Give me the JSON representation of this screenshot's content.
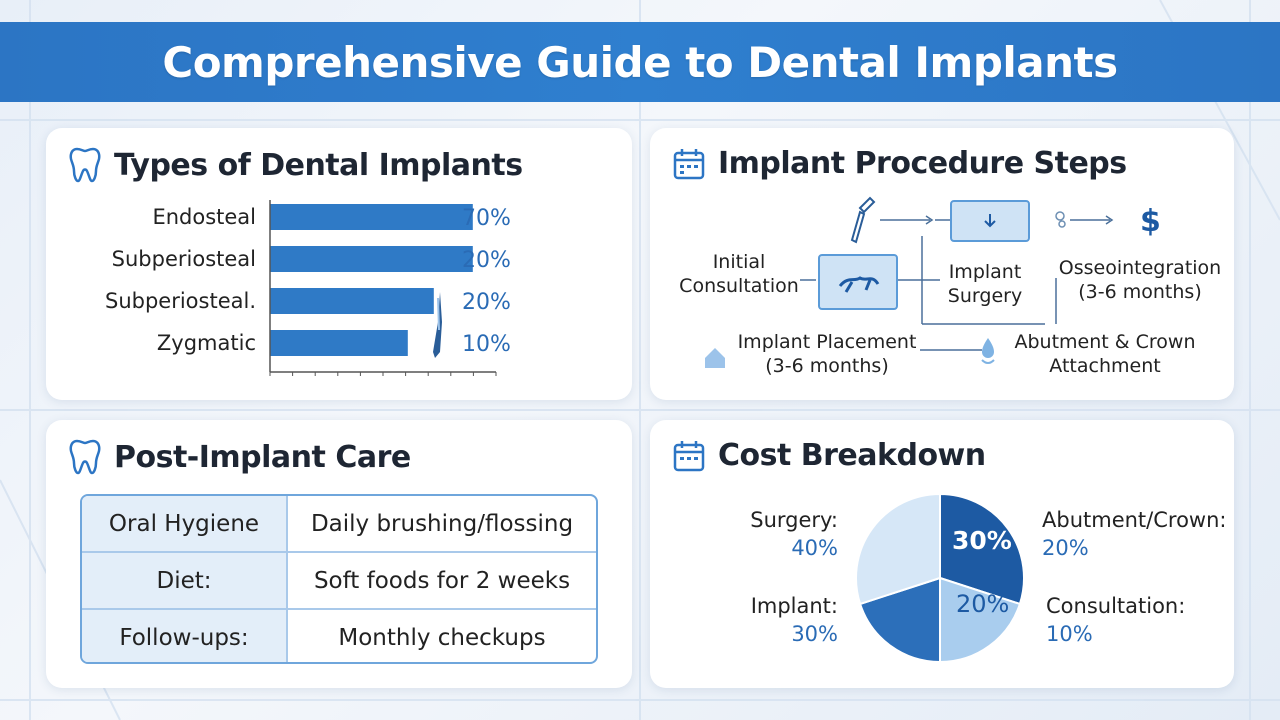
{
  "title": "Comprehensive Guide to Dental Implants",
  "types": {
    "title": "Types of Dental Implants",
    "icon": "tooth-icon"
  },
  "procedure": {
    "title": "Implant Procedure Steps",
    "icon": "calendar-icon",
    "steps": {
      "consultation": "Initial Consultation",
      "surgery_line1": "Implant",
      "surgery_line2": "Surgery",
      "osseo_line1": "Osseointegration",
      "osseo_line2": "(3-6 months)",
      "placement_line1": "Implant Placement",
      "placement_line2": "(3-6 months)",
      "abutment_line1": "Abutment & Crown",
      "abutment_line2": "Attachment",
      "dollar": "$"
    }
  },
  "care": {
    "title": "Post-Implant Care",
    "icon": "tooth-icon",
    "rows": [
      {
        "key": "Oral Hygiene",
        "value": "Daily brushing/flossing"
      },
      {
        "key": "Diet:",
        "value": "Soft foods for 2 weeks"
      },
      {
        "key": "Follow-ups:",
        "value": "Monthly checkups"
      }
    ]
  },
  "cost": {
    "title": "Cost Breakdown",
    "icon": "calendar-icon",
    "labels": {
      "surgery": "Surgery:",
      "surgery_pct": "40%",
      "implant": "Implant:",
      "implant_pct": "30%",
      "abutment": "Abutment/Crown:",
      "abutment_pct": "20%",
      "consultation": "Consultation:",
      "consultation_pct": "10%",
      "inner_dark": "30%",
      "inner_light": "20%"
    }
  },
  "colors": {
    "accent": "#2c75c4",
    "dark_blue": "#1d5aa3",
    "light_blue": "#a9cdee"
  },
  "chart_data": [
    {
      "type": "bar",
      "categories": [
        "Endosteal",
        "Subperiosteal",
        "Subperiosteal.",
        "Zygmatic"
      ],
      "values": [
        70,
        20,
        20,
        10
      ],
      "value_labels": [
        "70%",
        "20%",
        "20%",
        "10%"
      ],
      "bar_fractions": [
        0.78,
        0.78,
        0.63,
        0.53
      ],
      "title": "Types of Dental Implants"
    },
    {
      "type": "pie",
      "categories": [
        "Surgery",
        "Implant",
        "Abutment/Crown",
        "Consultation"
      ],
      "values": [
        40,
        30,
        20,
        10
      ],
      "title": "Cost Breakdown"
    }
  ]
}
